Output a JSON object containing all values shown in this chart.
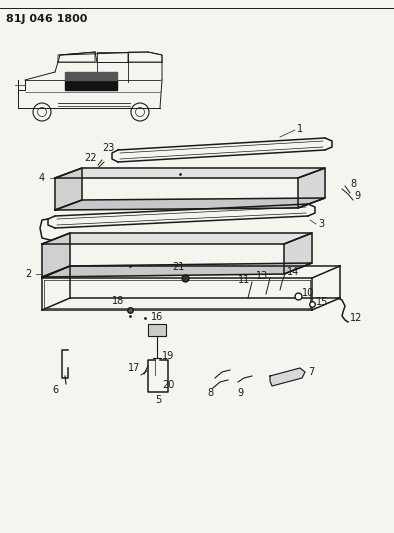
{
  "title": "81J 046 1800",
  "bg_color": "#f5f5f0",
  "line_color": "#1a1a1a",
  "title_fontsize": 8,
  "label_fontsize": 7,
  "fig_width": 3.94,
  "fig_height": 5.33,
  "dpi": 100
}
